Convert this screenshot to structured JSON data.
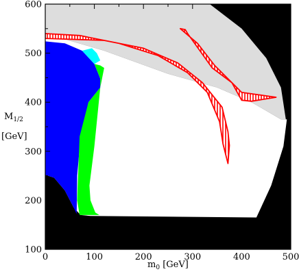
{
  "chart_data": {
    "type": "area",
    "title": "",
    "xlabel_main": "m",
    "xlabel_sub": "0",
    "xlabel_unit": " [GeV]",
    "ylabel_main": "M",
    "ylabel_sub": "1/2",
    "ylabel_unit": "[GeV]",
    "xlim": [
      0,
      500
    ],
    "ylim": [
      100,
      600
    ],
    "x_ticks": [
      0,
      100,
      200,
      300,
      400,
      500
    ],
    "y_ticks": [
      100,
      200,
      300,
      400,
      500,
      600
    ],
    "grid": false,
    "legend": "none",
    "regions": [
      {
        "key": "excluded_black",
        "color": "#000000",
        "polygon": [
          [
            0,
            100
          ],
          [
            500,
            100
          ],
          [
            500,
            600
          ],
          [
            0,
            600
          ]
        ]
      },
      {
        "key": "gray",
        "color": "#dddddd",
        "polygon": [
          [
            0,
            600
          ],
          [
            0,
            540
          ],
          [
            120,
            505
          ],
          [
            250,
            458
          ],
          [
            350,
            430
          ],
          [
            420,
            400
          ],
          [
            480,
            365
          ],
          [
            490,
            365
          ],
          [
            480,
            430
          ],
          [
            450,
            490
          ],
          [
            400,
            550
          ],
          [
            335,
            600
          ]
        ]
      },
      {
        "key": "white",
        "color": "#ffffff",
        "polygon": [
          [
            0,
            252
          ],
          [
            18,
            246
          ],
          [
            40,
            220
          ],
          [
            58,
            185
          ],
          [
            72,
            170
          ],
          [
            92,
            168
          ],
          [
            430,
            165
          ],
          [
            460,
            230
          ],
          [
            485,
            310
          ],
          [
            492,
            365
          ],
          [
            480,
            365
          ],
          [
            420,
            400
          ],
          [
            350,
            430
          ],
          [
            250,
            458
          ],
          [
            120,
            505
          ],
          [
            0,
            540
          ]
        ]
      },
      {
        "key": "blue",
        "color": "#0000ff",
        "polygon": [
          [
            0,
            524
          ],
          [
            40,
            520
          ],
          [
            75,
            505
          ],
          [
            100,
            478
          ],
          [
            112,
            448
          ],
          [
            112,
            430
          ],
          [
            88,
            400
          ],
          [
            72,
            330
          ],
          [
            65,
            250
          ],
          [
            64,
            172
          ],
          [
            58,
            185
          ],
          [
            40,
            220
          ],
          [
            18,
            246
          ],
          [
            0,
            252
          ]
        ]
      },
      {
        "key": "cyan",
        "color": "#00ffff",
        "polygon": [
          [
            75,
            505
          ],
          [
            95,
            510
          ],
          [
            105,
            500
          ],
          [
            112,
            485
          ],
          [
            100,
            478
          ]
        ]
      },
      {
        "key": "green",
        "color": "#00ff00",
        "polygon": [
          [
            100,
            478
          ],
          [
            112,
            475
          ],
          [
            120,
            470
          ],
          [
            112,
            430
          ],
          [
            100,
            310
          ],
          [
            90,
            230
          ],
          [
            92,
            200
          ],
          [
            102,
            175
          ],
          [
            110,
            170
          ],
          [
            70,
            170
          ],
          [
            65,
            200
          ],
          [
            70,
            330
          ],
          [
            88,
            400
          ],
          [
            112,
            430
          ],
          [
            112,
            448
          ]
        ]
      }
    ],
    "hatched_bands": [
      {
        "key": "long_band",
        "color": "#ff0000",
        "polygon": [
          [
            0,
            540
          ],
          [
            70,
            536
          ],
          [
            150,
            520
          ],
          [
            230,
            495
          ],
          [
            290,
            460
          ],
          [
            330,
            420
          ],
          [
            355,
            360
          ],
          [
            362,
            315
          ],
          [
            372,
            275
          ],
          [
            375,
            312
          ],
          [
            372,
            340
          ],
          [
            360,
            390
          ],
          [
            320,
            440
          ],
          [
            270,
            480
          ],
          [
            200,
            510
          ],
          [
            120,
            526
          ],
          [
            0,
            530
          ]
        ]
      },
      {
        "key": "loop_band",
        "color": "#ff0000",
        "polygon": [
          [
            275,
            550
          ],
          [
            310,
            520
          ],
          [
            345,
            475
          ],
          [
            400,
            420
          ],
          [
            470,
            410
          ],
          [
            420,
            402
          ],
          [
            400,
            404
          ],
          [
            380,
            440
          ],
          [
            340,
            470
          ],
          [
            290,
            540
          ],
          [
            285,
            548
          ]
        ]
      }
    ]
  }
}
